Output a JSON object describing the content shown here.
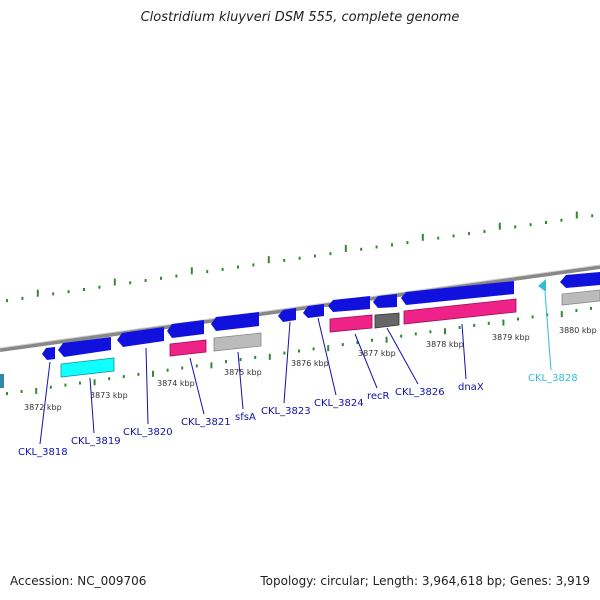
{
  "title": "Clostridium kluyveri DSM 555, complete genome",
  "footer": {
    "accession": "Accession: NC_009706",
    "topology": "Topology: circular; Length: 3,964,618 bp; Genes: 3,919"
  },
  "colors": {
    "cds_forward": "#1111dd",
    "cds_reverse_pink": "#ee2288",
    "cds_gray": "#bbbbbb",
    "cds_darkgray": "#666666",
    "cds_cyan": "#11ffff",
    "tick": "#338833",
    "backbone": "#888888",
    "label_default": "#1111aa",
    "label_highlight": "#33bbdd"
  },
  "ticks": [
    {
      "label": "3872 kbp"
    },
    {
      "label": "3873 kbp"
    },
    {
      "label": "3874 kbp"
    },
    {
      "label": "3875 kbp"
    },
    {
      "label": "3876 kbp"
    },
    {
      "label": "3877 kbp"
    },
    {
      "label": "3878 kbp"
    },
    {
      "label": "3879 kbp"
    },
    {
      "label": "3880 kbp"
    }
  ],
  "gene_labels": [
    {
      "label": "CKL_3818",
      "highlight": false
    },
    {
      "label": "CKL_3819",
      "highlight": false
    },
    {
      "label": "CKL_3820",
      "highlight": false
    },
    {
      "label": "CKL_3821",
      "highlight": false
    },
    {
      "label": "sfsA",
      "highlight": false
    },
    {
      "label": "CKL_3823",
      "highlight": false
    },
    {
      "label": "CKL_3824",
      "highlight": false
    },
    {
      "label": "recR",
      "highlight": false
    },
    {
      "label": "CKL_3826",
      "highlight": false
    },
    {
      "label": "dnaX",
      "highlight": false
    },
    {
      "label": "CKL_3828",
      "highlight": true
    }
  ]
}
